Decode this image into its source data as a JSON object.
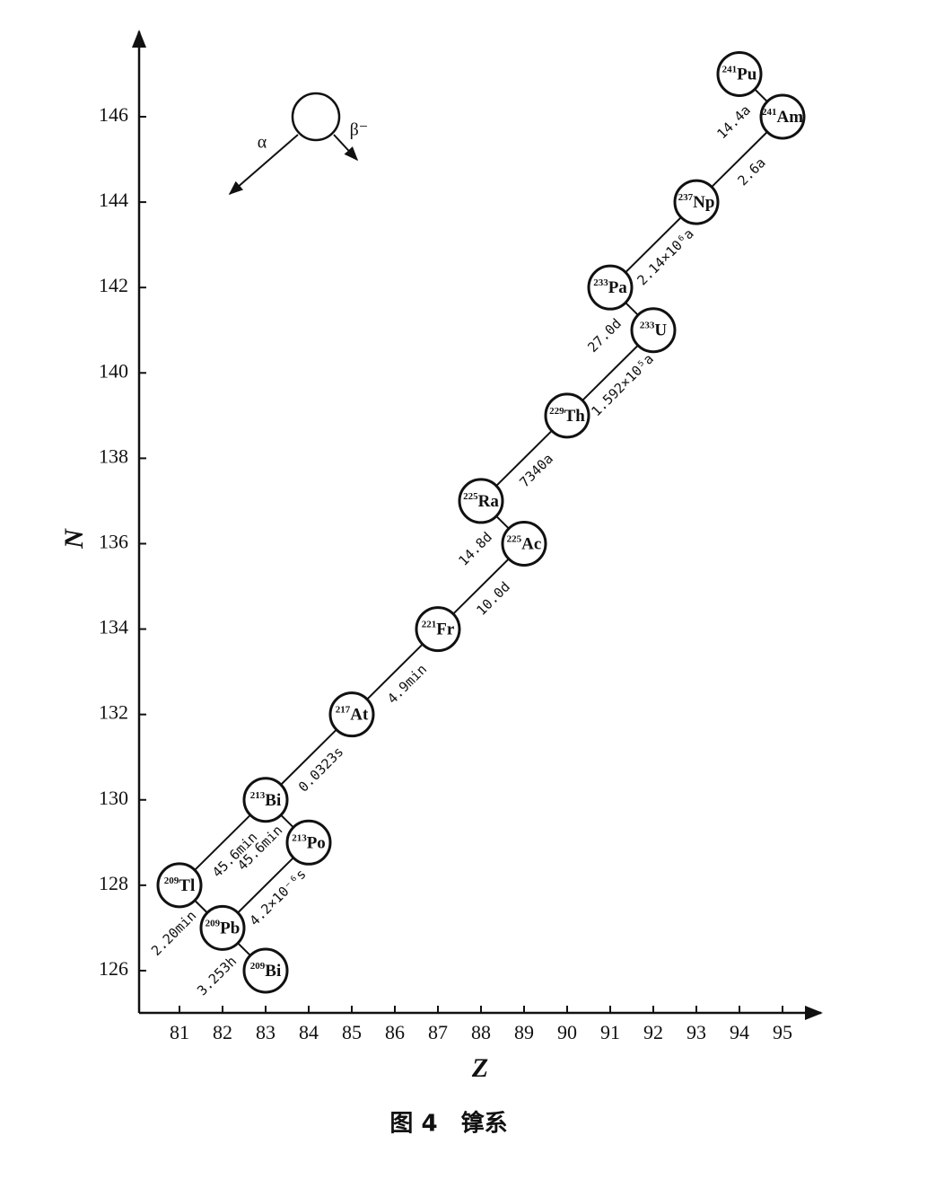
{
  "axes": {
    "x_label": "Z",
    "y_label": "N",
    "xlim": [
      80,
      96
    ],
    "ylim": [
      125,
      148
    ],
    "xticks": [
      81,
      82,
      83,
      84,
      85,
      86,
      87,
      88,
      89,
      90,
      91,
      92,
      93,
      94,
      95
    ],
    "yticks": [
      126,
      128,
      130,
      132,
      134,
      136,
      138,
      140,
      142,
      144,
      146
    ]
  },
  "legend": {
    "alpha": "α",
    "beta": "β⁻"
  },
  "nodes": [
    {
      "mass": "241",
      "symbol": "Pu",
      "z": 94,
      "n": 147
    },
    {
      "mass": "241",
      "symbol": "Am",
      "z": 95,
      "n": 146
    },
    {
      "mass": "237",
      "symbol": "Np",
      "z": 93,
      "n": 144
    },
    {
      "mass": "233",
      "symbol": "Pa",
      "z": 91,
      "n": 142
    },
    {
      "mass": "233",
      "symbol": "U",
      "z": 92,
      "n": 141
    },
    {
      "mass": "229",
      "symbol": "Th",
      "z": 90,
      "n": 139
    },
    {
      "mass": "225",
      "symbol": "Ra",
      "z": 88,
      "n": 137
    },
    {
      "mass": "225",
      "symbol": "Ac",
      "z": 89,
      "n": 136
    },
    {
      "mass": "221",
      "symbol": "Fr",
      "z": 87,
      "n": 134
    },
    {
      "mass": "217",
      "symbol": "At",
      "z": 85,
      "n": 132
    },
    {
      "mass": "213",
      "symbol": "Bi",
      "z": 83,
      "n": 130
    },
    {
      "mass": "213",
      "symbol": "Po",
      "z": 84,
      "n": 129
    },
    {
      "mass": "209",
      "symbol": "Tl",
      "z": 81,
      "n": 128
    },
    {
      "mass": "209",
      "symbol": "Pb",
      "z": 82,
      "n": 127
    },
    {
      "mass": "209",
      "symbol": "Bi",
      "z": 83,
      "n": 126
    }
  ],
  "edges": [
    {
      "from": 0,
      "to": 1,
      "label": "14.4a"
    },
    {
      "from": 1,
      "to": 2,
      "label": "2.6a"
    },
    {
      "from": 2,
      "to": 3,
      "label": "2.14×10⁶a"
    },
    {
      "from": 3,
      "to": 4,
      "label": "27.0d"
    },
    {
      "from": 4,
      "to": 5,
      "label": "1.592×10⁵a"
    },
    {
      "from": 5,
      "to": 6,
      "label": "7340a"
    },
    {
      "from": 6,
      "to": 7,
      "label": "14.8d"
    },
    {
      "from": 7,
      "to": 8,
      "label": "10.0d"
    },
    {
      "from": 8,
      "to": 9,
      "label": "4.9min"
    },
    {
      "from": 9,
      "to": 10,
      "label": "0.0323s"
    },
    {
      "from": 10,
      "to": 11,
      "label": "45.6min"
    },
    {
      "from": 10,
      "to": 12,
      "label": "45.6min"
    },
    {
      "from": 12,
      "to": 13,
      "label": "2.20min"
    },
    {
      "from": 11,
      "to": 13,
      "label": "4.2×10⁻⁶s"
    },
    {
      "from": 13,
      "to": 14,
      "label": "3.253h"
    }
  ],
  "caption": "图 4　镎系"
}
